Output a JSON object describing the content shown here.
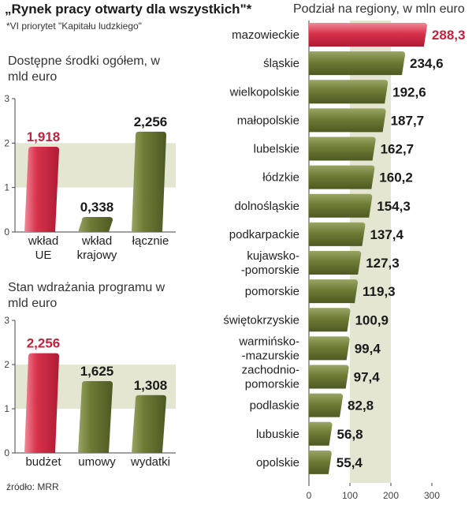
{
  "header": {
    "title": "„Rynek pracy otwarty dla wszystkich\"*",
    "subtitle": "*VI priorytet \"Kapitału ludzkiego\""
  },
  "source": "źródło: MRR",
  "colors": {
    "highlight": "#c8203b",
    "highlight_light": "#e8697d",
    "bar": "#5e6b2b",
    "bar_light": "#98a565",
    "band": "#e4e6d2",
    "label_highlight": "#c8203b",
    "label": "#1a1a1a"
  },
  "chart_data": [
    {
      "type": "bar",
      "title": "Dostępne środki ogółem, w mld euro",
      "categories": [
        "wkład UE",
        "wkład krajowy",
        "łącznie"
      ],
      "values": [
        1.918,
        0.338,
        2.256
      ],
      "value_labels": [
        "1,918",
        "0,338",
        "2,256"
      ],
      "highlight_index": 0,
      "ylim": [
        0,
        3
      ],
      "yticks": [
        0,
        1,
        2,
        3
      ],
      "grid": false
    },
    {
      "type": "bar",
      "title": "Stan wdrażania programu w mld euro",
      "categories": [
        "budżet",
        "umowy",
        "wydatki"
      ],
      "values": [
        2.256,
        1.625,
        1.308
      ],
      "value_labels": [
        "2,256",
        "1,625",
        "1,308"
      ],
      "highlight_index": 0,
      "ylim": [
        0,
        3
      ],
      "yticks": [
        0,
        1,
        2,
        3
      ],
      "grid": false
    },
    {
      "type": "bar",
      "orientation": "horizontal",
      "title": "Podział na regiony, w mln euro",
      "categories": [
        "mazowieckie",
        "śląskie",
        "wielkopolskie",
        "małopolskie",
        "lubelskie",
        "łódzkie",
        "dolnośląskie",
        "podkarpackie",
        "kujawsko--pomorskie",
        "pomorskie",
        "świętokrzyskie",
        "warmińsko--mazurskie",
        "zachodnio-pomorskie",
        "podlaskie",
        "lubuskie",
        "opolskie"
      ],
      "category_lines": [
        [
          "mazowieckie"
        ],
        [
          "śląskie"
        ],
        [
          "wielkopolskie"
        ],
        [
          "małopolskie"
        ],
        [
          "lubelskie"
        ],
        [
          "łódzkie"
        ],
        [
          "dolnośląskie"
        ],
        [
          "podkarpackie"
        ],
        [
          "kujawsko-",
          "-pomorskie"
        ],
        [
          "pomorskie"
        ],
        [
          "świętokrzyskie"
        ],
        [
          "warmińsko-",
          "-mazurskie"
        ],
        [
          "zachodnio-",
          "pomorskie"
        ],
        [
          "podlaskie"
        ],
        [
          "lubuskie"
        ],
        [
          "opolskie"
        ]
      ],
      "values": [
        288.3,
        234.6,
        192.6,
        187.7,
        162.7,
        160.2,
        154.3,
        137.4,
        127.3,
        119.3,
        100.9,
        99.4,
        97.4,
        82.8,
        56.8,
        55.4
      ],
      "value_labels": [
        "288,3",
        "234,6",
        "192,6",
        "187,7",
        "162,7",
        "160,2",
        "154,3",
        "137,4",
        "127,3",
        "119,3",
        "100,9",
        "99,4",
        "97,4",
        "82,8",
        "56,8",
        "55,4"
      ],
      "highlight_index": 0,
      "xlim": [
        0,
        300
      ],
      "xticks": [
        0,
        100,
        200,
        300
      ],
      "grid": false
    }
  ]
}
